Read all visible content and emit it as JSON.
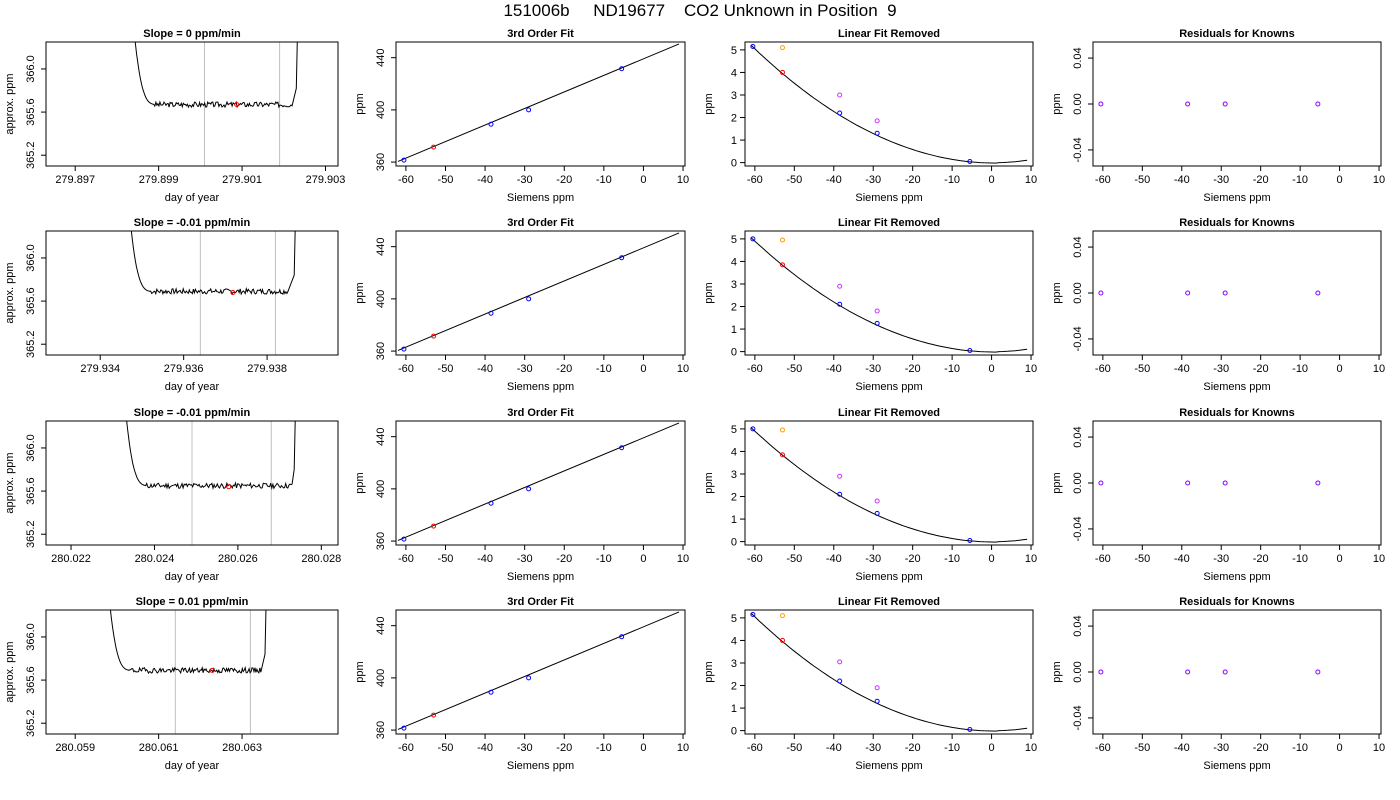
{
  "title": "151006b     ND19677    CO2 Unknown in Position  9",
  "colors": {
    "trace": "#000000",
    "window_line": "#bfbfbf",
    "fit_line": "#000000",
    "known": "#0000ff",
    "unknown": "#ff0000",
    "removed_other": "#ff9900",
    "removed_tank": "#cc33ff",
    "residual": "#8800ff"
  },
  "column_templates": {
    "trace": {
      "xlabel": "day of year",
      "ylabel": "approx. ppm",
      "yticks": [
        "365.2",
        "365.6",
        "366.0"
      ],
      "ylim": [
        365.1,
        366.25
      ]
    },
    "fit": {
      "title": "3rd Order Fit",
      "xlabel": "Siemens ppm",
      "ylabel": "ppm",
      "xticks": [
        "-60",
        "-50",
        "-40",
        "-30",
        "-20",
        "-10",
        "0",
        "10"
      ],
      "xlim": [
        -62.5,
        10.5
      ],
      "yticks": [
        "360",
        "400",
        "440"
      ],
      "ylim": [
        357,
        452
      ],
      "fit_line": {
        "x": [
          -62,
          9
        ],
        "y": [
          360.5,
          450.5
        ]
      }
    },
    "linear_removed": {
      "title": "Linear Fit Removed",
      "xlabel": "Siemens ppm",
      "ylabel": "ppm",
      "xticks": [
        "-60",
        "-50",
        "-40",
        "-30",
        "-20",
        "-10",
        "0",
        "10"
      ],
      "xlim": [
        -62.5,
        10.5
      ],
      "yticks": [
        "0",
        "1",
        "2",
        "3",
        "4",
        "5"
      ],
      "ylim": [
        -0.15,
        5.35
      ]
    },
    "residuals": {
      "title": "Residuals for Knowns",
      "xlabel": "Siemens ppm",
      "ylabel": "ppm",
      "xticks": [
        "-60",
        "-50",
        "-40",
        "-30",
        "-20",
        "-10",
        "0",
        "10"
      ],
      "xlim": [
        -62.5,
        10.5
      ],
      "yticks": [
        "-0.04",
        "0.00",
        "0.04"
      ],
      "ylim": [
        -0.054,
        0.054
      ]
    }
  },
  "chart_data": [
    {
      "type": "line",
      "slope_label": "Slope =  0  ppm/min",
      "xticks": [
        "279.897",
        "279.899",
        "279.901",
        "279.903"
      ],
      "xlim": [
        279.8963,
        279.9033
      ],
      "window": [
        279.9001,
        279.9019
      ],
      "unknown_point": {
        "x": 279.90087,
        "y": 365.67
      },
      "trace": {
        "t_start": 279.8983,
        "t_plateau": 279.8989,
        "t_end": 279.9022,
        "t_rise": 279.9023,
        "plateau": 365.67,
        "noise": 0.025,
        "seed": 3
      },
      "fit_points": {
        "known": [
          [
            -60.5,
            361.5
          ],
          [
            -38.5,
            389.0
          ],
          [
            -29.0,
            400.0
          ],
          [
            -5.5,
            431.5
          ]
        ],
        "unknown": [
          [
            -53.0,
            371.5
          ]
        ]
      },
      "linear_removed": {
        "known": [
          [
            -60.5,
            5.15
          ],
          [
            -38.5,
            2.2
          ],
          [
            -29.0,
            1.3
          ],
          [
            -5.5,
            0.05
          ]
        ],
        "unknown": [
          [
            -53.0,
            4.0
          ]
        ],
        "removed_other": [
          [
            -53.0,
            5.1
          ]
        ],
        "removed_tank": [
          [
            -38.5,
            3.0
          ],
          [
            -29.0,
            1.85
          ]
        ],
        "curve_scale": 5.15
      },
      "residuals": [
        [
          -60.5,
          0.0
        ],
        [
          -38.5,
          0.0
        ],
        [
          -29.0,
          0.0
        ],
        [
          -5.5,
          0.0
        ]
      ]
    },
    {
      "type": "line",
      "slope_label": "Slope =  -0.01  ppm/min",
      "xticks": [
        "279.934",
        "279.936",
        "279.938"
      ],
      "xlim": [
        279.9327,
        279.9397
      ],
      "window": [
        279.9364,
        279.9382
      ],
      "unknown_point": {
        "x": 279.93718,
        "y": 365.68
      },
      "trace": {
        "t_start": 279.9346,
        "t_plateau": 279.9352,
        "t_end": 279.9385,
        "t_rise": 279.93865,
        "plateau": 365.69,
        "noise": 0.025,
        "seed": 7
      },
      "fit_points": {
        "known": [
          [
            -60.5,
            361.5
          ],
          [
            -38.5,
            389.0
          ],
          [
            -29.0,
            400.0
          ],
          [
            -5.5,
            431.5
          ]
        ],
        "unknown": [
          [
            -53.0,
            371.5
          ]
        ]
      },
      "linear_removed": {
        "known": [
          [
            -60.5,
            5.0
          ],
          [
            -38.5,
            2.1
          ],
          [
            -29.0,
            1.25
          ],
          [
            -5.5,
            0.05
          ]
        ],
        "unknown": [
          [
            -53.0,
            3.85
          ]
        ],
        "removed_other": [
          [
            -53.0,
            4.95
          ]
        ],
        "removed_tank": [
          [
            -38.5,
            2.9
          ],
          [
            -29.0,
            1.8
          ]
        ],
        "curve_scale": 5.0
      },
      "residuals": [
        [
          -60.5,
          0.0
        ],
        [
          -38.5,
          0.0
        ],
        [
          -29.0,
          0.0
        ],
        [
          -5.5,
          0.0
        ]
      ]
    },
    {
      "type": "line",
      "slope_label": "Slope =  -0.01  ppm/min",
      "xticks": [
        "280.022",
        "280.024",
        "280.026",
        "280.028"
      ],
      "xlim": [
        280.0214,
        280.0284
      ],
      "window": [
        280.0249,
        280.0268
      ],
      "unknown_point": {
        "x": 280.02578,
        "y": 365.64
      },
      "trace": {
        "t_start": 280.0232,
        "t_plateau": 280.0238,
        "t_end": 280.0273,
        "t_rise": 280.02735,
        "plateau": 365.65,
        "noise": 0.025,
        "seed": 11
      },
      "fit_points": {
        "known": [
          [
            -60.5,
            361.5
          ],
          [
            -38.5,
            389.0
          ],
          [
            -29.0,
            400.0
          ],
          [
            -5.5,
            431.5
          ]
        ],
        "unknown": [
          [
            -53.0,
            371.5
          ]
        ]
      },
      "linear_removed": {
        "known": [
          [
            -60.5,
            5.0
          ],
          [
            -38.5,
            2.1
          ],
          [
            -29.0,
            1.25
          ],
          [
            -5.5,
            0.05
          ]
        ],
        "unknown": [
          [
            -53.0,
            3.85
          ]
        ],
        "removed_other": [
          [
            -53.0,
            4.95
          ]
        ],
        "removed_tank": [
          [
            -38.5,
            2.9
          ],
          [
            -29.0,
            1.8
          ]
        ],
        "curve_scale": 5.0
      },
      "residuals": [
        [
          -60.5,
          0.0
        ],
        [
          -38.5,
          0.0
        ],
        [
          -29.0,
          0.0
        ],
        [
          -5.5,
          0.0
        ]
      ]
    },
    {
      "type": "line",
      "slope_label": "Slope =  0.01  ppm/min",
      "xticks": [
        "280.059",
        "280.061",
        "280.063"
      ],
      "xlim": [
        280.0583,
        280.0653
      ],
      "window": [
        280.0614,
        280.0632
      ],
      "unknown_point": {
        "x": 280.06228,
        "y": 365.69
      },
      "trace": {
        "t_start": 280.0597,
        "t_plateau": 280.0603,
        "t_end": 280.06345,
        "t_rise": 280.06355,
        "plateau": 365.69,
        "noise": 0.025,
        "seed": 19
      },
      "fit_points": {
        "known": [
          [
            -60.5,
            361.5
          ],
          [
            -38.5,
            389.0
          ],
          [
            -29.0,
            400.0
          ],
          [
            -5.5,
            431.5
          ]
        ],
        "unknown": [
          [
            -53.0,
            371.5
          ]
        ]
      },
      "linear_removed": {
        "known": [
          [
            -60.5,
            5.15
          ],
          [
            -38.5,
            2.2
          ],
          [
            -29.0,
            1.3
          ],
          [
            -5.5,
            0.05
          ]
        ],
        "unknown": [
          [
            -53.0,
            4.0
          ]
        ],
        "removed_other": [
          [
            -53.0,
            5.1
          ]
        ],
        "removed_tank": [
          [
            -38.5,
            3.05
          ],
          [
            -29.0,
            1.9
          ]
        ],
        "curve_scale": 5.15
      },
      "residuals": [
        [
          -60.5,
          0.0
        ],
        [
          -38.5,
          0.0
        ],
        [
          -29.0,
          0.0
        ],
        [
          -5.5,
          0.0
        ]
      ]
    }
  ]
}
